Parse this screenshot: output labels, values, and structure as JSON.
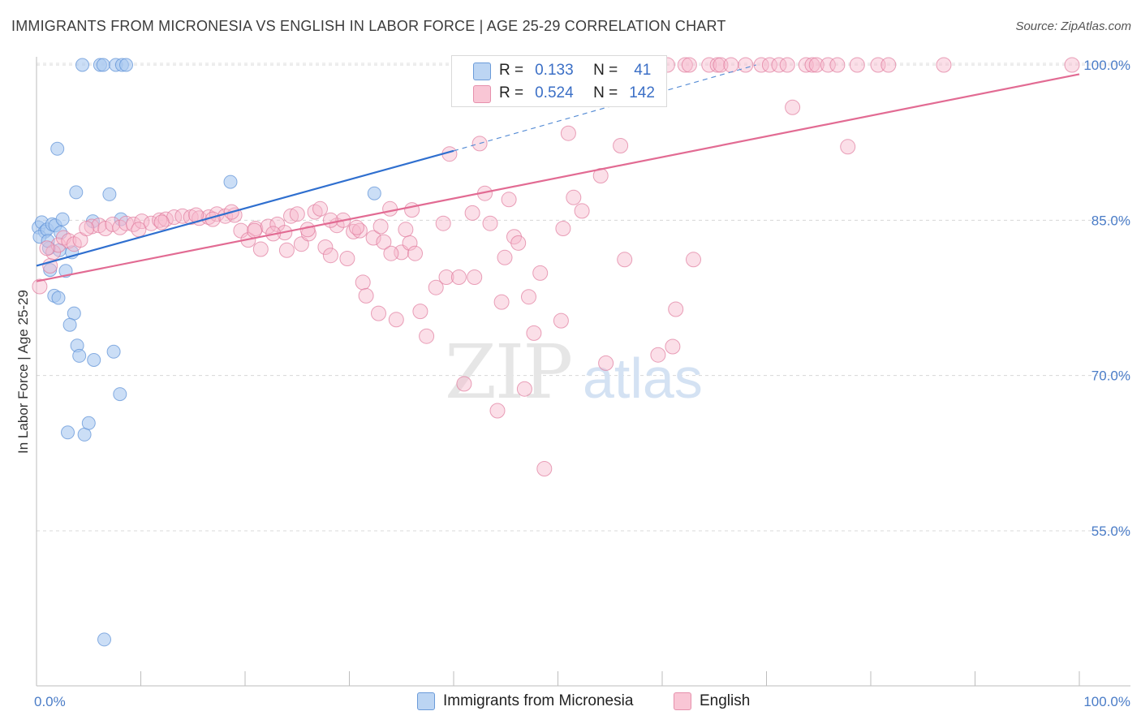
{
  "title": "IMMIGRANTS FROM MICRONESIA VS ENGLISH IN LABOR FORCE | AGE 25-29 CORRELATION CHART",
  "source": "Source: ZipAtlas.com",
  "watermark": {
    "zip": "ZIP",
    "atlas": "atlas"
  },
  "legend": {
    "r_label": "R =",
    "n_label": "N =",
    "rows": [
      {
        "name": "Immigrants from Micronesia",
        "r": "0.133",
        "n": "41",
        "color": "#a9c8f0",
        "stroke": "#5a8fd6"
      },
      {
        "name": "English",
        "r": "0.524",
        "n": "142",
        "color": "#f7b8cc",
        "stroke": "#e07a9c"
      }
    ]
  },
  "chart_data": {
    "type": "scatter",
    "title": "IMMIGRANTS FROM MICRONESIA VS ENGLISH IN LABOR FORCE | AGE 25-29 CORRELATION CHART",
    "xlabel": "",
    "ylabel": "In Labor Force | Age 25-29",
    "xlim": [
      0,
      100
    ],
    "ylim": [
      40,
      102
    ],
    "x_tick_labels": [
      "0.0%",
      "100.0%"
    ],
    "y_ticks": [
      55,
      70,
      85,
      100
    ],
    "y_tick_labels": [
      "55.0%",
      "70.0%",
      "85.0%",
      "100.0%"
    ],
    "grid": true,
    "series": [
      {
        "name": "Immigrants from Micronesia",
        "color": "#a9c8f0",
        "stroke": "#5a8fd6",
        "trend": {
          "x": [
            0,
            40
          ],
          "y": [
            80.6,
            91.7
          ],
          "dashed_to": [
            69,
            100
          ]
        },
        "points": [
          [
            0.2,
            84.3
          ],
          [
            0.5,
            84.8
          ],
          [
            0.8,
            83.9
          ],
          [
            0.3,
            83.4
          ],
          [
            1.0,
            84.1
          ],
          [
            1.2,
            82.3
          ],
          [
            1.5,
            84.6
          ],
          [
            1.8,
            84.5
          ],
          [
            2.2,
            82.1
          ],
          [
            2.5,
            85.1
          ],
          [
            2.3,
            83.8
          ],
          [
            1.3,
            80.2
          ],
          [
            2.8,
            80.1
          ],
          [
            3.4,
            81.9
          ],
          [
            1.7,
            77.7
          ],
          [
            2.1,
            77.5
          ],
          [
            3.6,
            76.0
          ],
          [
            3.2,
            74.9
          ],
          [
            3.9,
            72.9
          ],
          [
            4.1,
            71.9
          ],
          [
            5.5,
            71.5
          ],
          [
            7.4,
            72.3
          ],
          [
            3.0,
            64.5
          ],
          [
            4.6,
            64.3
          ],
          [
            5.0,
            65.4
          ],
          [
            8.0,
            68.2
          ],
          [
            2.0,
            91.9
          ],
          [
            3.8,
            87.7
          ],
          [
            7.0,
            87.5
          ],
          [
            8.1,
            85.1
          ],
          [
            5.4,
            84.9
          ],
          [
            4.4,
            100
          ],
          [
            6.1,
            100
          ],
          [
            6.4,
            100
          ],
          [
            7.6,
            100
          ],
          [
            8.2,
            100
          ],
          [
            8.6,
            100
          ],
          [
            18.6,
            88.7
          ],
          [
            32.4,
            87.6
          ],
          [
            6.5,
            44.5
          ],
          [
            1.1,
            83.0
          ]
        ]
      },
      {
        "name": "English",
        "color": "#f7b8cc",
        "stroke": "#e07a9c",
        "trend": {
          "x": [
            0,
            100
          ],
          "y": [
            79.1,
            99.1
          ]
        },
        "points": [
          [
            0.3,
            78.6
          ],
          [
            1.3,
            80.6
          ],
          [
            1.6,
            81.9
          ],
          [
            2.1,
            82.6
          ],
          [
            2.6,
            83.3
          ],
          [
            3.1,
            83.0
          ],
          [
            3.6,
            82.7
          ],
          [
            4.2,
            83.1
          ],
          [
            5.3,
            84.4
          ],
          [
            6.0,
            84.5
          ],
          [
            6.6,
            84.2
          ],
          [
            7.3,
            84.6
          ],
          [
            8.0,
            84.3
          ],
          [
            8.6,
            84.7
          ],
          [
            9.3,
            84.6
          ],
          [
            10.1,
            84.9
          ],
          [
            11.0,
            84.7
          ],
          [
            11.8,
            85.0
          ],
          [
            12.4,
            85.1
          ],
          [
            13.2,
            85.3
          ],
          [
            14.0,
            85.4
          ],
          [
            14.8,
            85.3
          ],
          [
            15.6,
            85.2
          ],
          [
            16.5,
            85.3
          ],
          [
            17.3,
            85.6
          ],
          [
            18.1,
            85.4
          ],
          [
            19.0,
            85.5
          ],
          [
            19.6,
            84.0
          ],
          [
            20.3,
            83.1
          ],
          [
            21.0,
            84.2
          ],
          [
            21.5,
            82.2
          ],
          [
            22.2,
            84.4
          ],
          [
            23.1,
            84.6
          ],
          [
            23.8,
            83.8
          ],
          [
            24.4,
            85.4
          ],
          [
            25.0,
            85.6
          ],
          [
            25.4,
            82.7
          ],
          [
            26.1,
            83.7
          ],
          [
            26.7,
            85.8
          ],
          [
            27.2,
            86.1
          ],
          [
            27.7,
            82.4
          ],
          [
            28.2,
            81.6
          ],
          [
            28.8,
            84.5
          ],
          [
            29.4,
            85.0
          ],
          [
            29.8,
            81.3
          ],
          [
            30.4,
            83.9
          ],
          [
            31.0,
            84.0
          ],
          [
            31.3,
            79.0
          ],
          [
            31.6,
            77.7
          ],
          [
            32.3,
            83.3
          ],
          [
            32.8,
            76.0
          ],
          [
            33.3,
            82.9
          ],
          [
            33.9,
            86.1
          ],
          [
            34.5,
            75.4
          ],
          [
            35.0,
            81.9
          ],
          [
            35.4,
            84.1
          ],
          [
            35.8,
            82.8
          ],
          [
            36.3,
            81.8
          ],
          [
            36.8,
            76.2
          ],
          [
            37.4,
            73.8
          ],
          [
            38.3,
            78.5
          ],
          [
            39.0,
            84.7
          ],
          [
            39.3,
            79.5
          ],
          [
            39.6,
            91.4
          ],
          [
            40.5,
            79.5
          ],
          [
            41.0,
            69.2
          ],
          [
            41.8,
            85.7
          ],
          [
            42.0,
            79.5
          ],
          [
            42.5,
            92.4
          ],
          [
            43.0,
            87.6
          ],
          [
            43.5,
            84.7
          ],
          [
            44.2,
            66.6
          ],
          [
            44.6,
            77.1
          ],
          [
            44.9,
            81.4
          ],
          [
            45.3,
            87.0
          ],
          [
            45.8,
            83.4
          ],
          [
            46.2,
            82.8
          ],
          [
            46.8,
            68.7
          ],
          [
            47.2,
            77.6
          ],
          [
            47.7,
            74.1
          ],
          [
            48.3,
            79.9
          ],
          [
            48.7,
            61.0
          ],
          [
            49.2,
            100
          ],
          [
            50.3,
            75.3
          ],
          [
            50.5,
            84.2
          ],
          [
            51.0,
            93.4
          ],
          [
            51.5,
            87.2
          ],
          [
            52.3,
            85.9
          ],
          [
            53.0,
            100
          ],
          [
            53.7,
            100
          ],
          [
            54.1,
            89.3
          ],
          [
            54.6,
            71.2
          ],
          [
            55.6,
            100
          ],
          [
            56.0,
            92.2
          ],
          [
            56.4,
            81.2
          ],
          [
            57.2,
            100
          ],
          [
            58.2,
            100
          ],
          [
            58.7,
            100
          ],
          [
            59.6,
            72.0
          ],
          [
            60.5,
            100
          ],
          [
            61.0,
            72.8
          ],
          [
            61.3,
            76.4
          ],
          [
            62.2,
            100
          ],
          [
            62.6,
            100
          ],
          [
            63.0,
            81.2
          ],
          [
            64.5,
            100
          ],
          [
            65.3,
            100
          ],
          [
            65.6,
            100
          ],
          [
            66.6,
            100
          ],
          [
            68.0,
            100
          ],
          [
            69.5,
            100
          ],
          [
            70.3,
            100
          ],
          [
            71.2,
            100
          ],
          [
            72.0,
            100
          ],
          [
            72.5,
            95.9
          ],
          [
            73.8,
            100
          ],
          [
            74.4,
            100
          ],
          [
            74.8,
            100
          ],
          [
            75.9,
            100
          ],
          [
            76.8,
            100
          ],
          [
            77.8,
            92.1
          ],
          [
            78.7,
            100
          ],
          [
            80.7,
            100
          ],
          [
            81.7,
            100
          ],
          [
            87.0,
            100
          ],
          [
            99.3,
            100
          ],
          [
            1.0,
            82.3
          ],
          [
            4.8,
            84.2
          ],
          [
            9.8,
            84.1
          ],
          [
            12.0,
            84.8
          ],
          [
            15.3,
            85.5
          ],
          [
            16.9,
            85.1
          ],
          [
            18.7,
            85.8
          ],
          [
            20.9,
            84.0
          ],
          [
            22.7,
            83.7
          ],
          [
            24.0,
            82.1
          ],
          [
            26.0,
            84.1
          ],
          [
            28.2,
            85.0
          ],
          [
            30.7,
            84.3
          ],
          [
            33.0,
            84.4
          ],
          [
            34.0,
            81.8
          ],
          [
            36.0,
            86.0
          ]
        ]
      }
    ]
  }
}
